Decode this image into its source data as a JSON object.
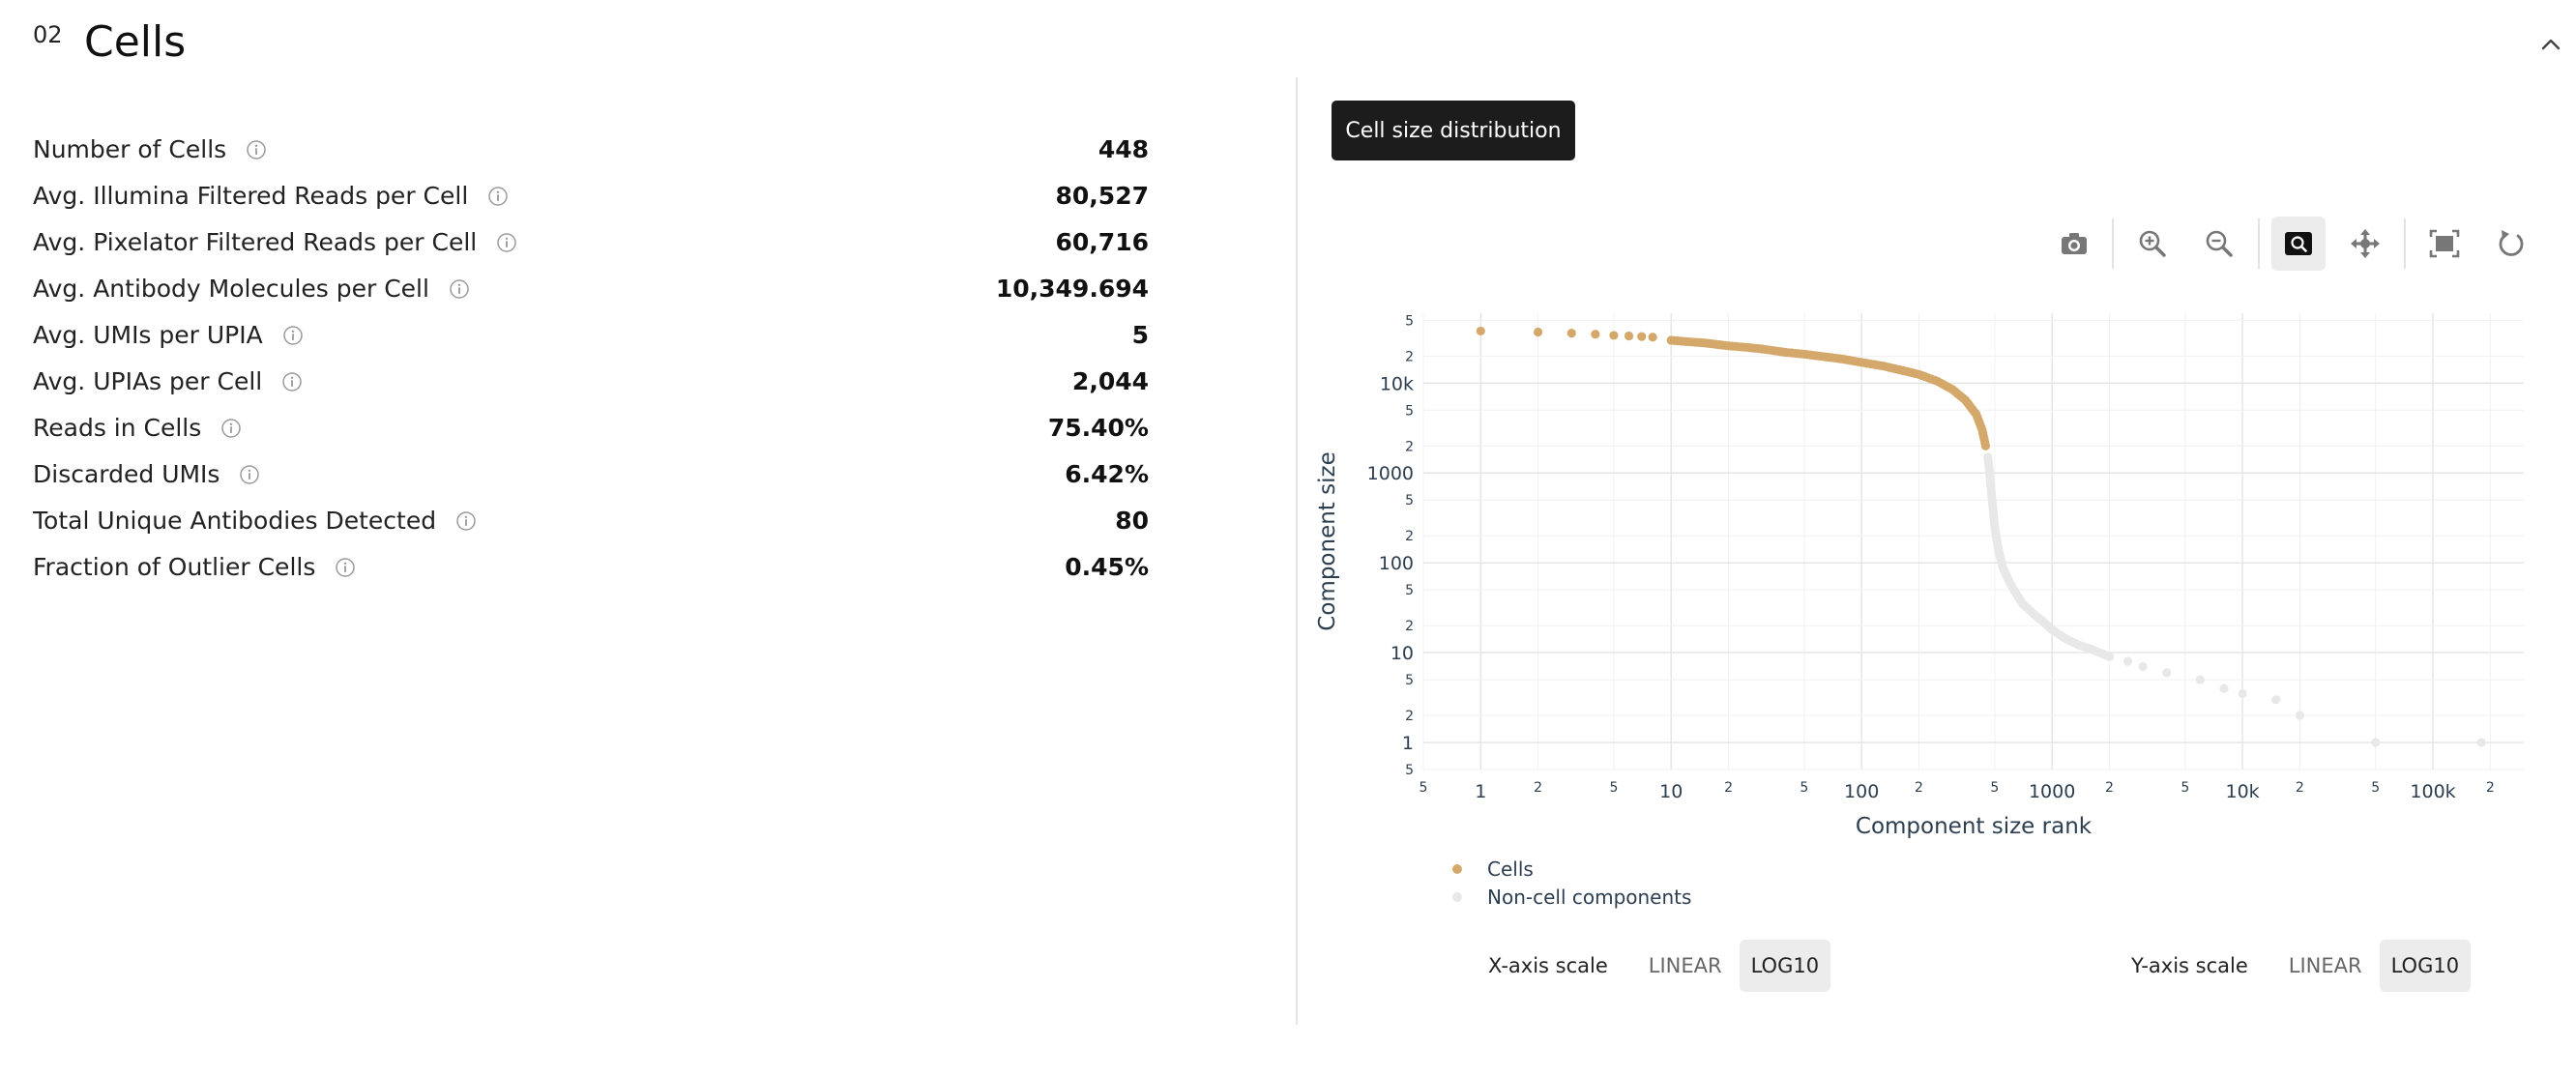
{
  "section": {
    "number": "02",
    "title": "Cells"
  },
  "metrics": [
    {
      "label": "Number of Cells",
      "value": "448"
    },
    {
      "label": "Avg. Illumina Filtered Reads per Cell",
      "value": "80,527"
    },
    {
      "label": "Avg. Pixelator Filtered Reads per Cell",
      "value": "60,716"
    },
    {
      "label": "Avg. Antibody Molecules per Cell",
      "value": "10,349.694"
    },
    {
      "label": "Avg. UMIs per UPIA",
      "value": "5"
    },
    {
      "label": "Avg. UPIAs per Cell",
      "value": "2,044"
    },
    {
      "label": "Reads in Cells",
      "value": "75.40%"
    },
    {
      "label": "Discarded UMIs",
      "value": "6.42%"
    },
    {
      "label": "Total Unique Antibodies Detected",
      "value": "80"
    },
    {
      "label": "Fraction of Outlier Cells",
      "value": "0.45%"
    }
  ],
  "plot_tab": {
    "label": "Cell size distribution"
  },
  "modebar": [
    "camera-icon",
    "zoom-in-icon",
    "zoom-out-icon",
    "zoom-box-icon",
    "pan-icon",
    "autoscale-icon",
    "reset-axes-icon"
  ],
  "axis_controls": {
    "x": {
      "label": "X-axis scale",
      "options": [
        "LINEAR",
        "LOG10"
      ],
      "selected": "LOG10"
    },
    "y": {
      "label": "Y-axis scale",
      "options": [
        "LINEAR",
        "LOG10"
      ],
      "selected": "LOG10"
    }
  },
  "colors": {
    "cells": "#d4a86a",
    "non_cell": "#e8e8e8",
    "tab_bg": "#1c1c1c"
  },
  "chart_data": {
    "type": "scatter",
    "xlabel": "Component size rank",
    "ylabel": "Component size",
    "x_scale": "log",
    "y_scale": "log",
    "xlim": [
      0.5,
      300000
    ],
    "ylim": [
      0.5,
      60000
    ],
    "grid": true,
    "legend_position": "below",
    "x_ticks": {
      "major": [
        {
          "v": 1,
          "t": "1"
        },
        {
          "v": 10,
          "t": "10"
        },
        {
          "v": 100,
          "t": "100"
        },
        {
          "v": 1000,
          "t": "1000"
        },
        {
          "v": 10000,
          "t": "10k"
        },
        {
          "v": 100000,
          "t": "100k"
        }
      ],
      "minor": [
        {
          "v": 0.5,
          "t": "5"
        },
        {
          "v": 2,
          "t": "2"
        },
        {
          "v": 5,
          "t": "5"
        },
        {
          "v": 20,
          "t": "2"
        },
        {
          "v": 50,
          "t": "5"
        },
        {
          "v": 200,
          "t": "2"
        },
        {
          "v": 500,
          "t": "5"
        },
        {
          "v": 2000,
          "t": "2"
        },
        {
          "v": 5000,
          "t": "5"
        },
        {
          "v": 20000,
          "t": "2"
        },
        {
          "v": 50000,
          "t": "5"
        },
        {
          "v": 200000,
          "t": "2"
        }
      ]
    },
    "y_ticks": {
      "major": [
        {
          "v": 1,
          "t": "1"
        },
        {
          "v": 10,
          "t": "10"
        },
        {
          "v": 100,
          "t": "100"
        },
        {
          "v": 1000,
          "t": "1000"
        },
        {
          "v": 10000,
          "t": "10k"
        }
      ],
      "minor": [
        {
          "v": 0.5,
          "t": "5"
        },
        {
          "v": 2,
          "t": "2"
        },
        {
          "v": 5,
          "t": "5"
        },
        {
          "v": 20,
          "t": "2"
        },
        {
          "v": 50,
          "t": "5"
        },
        {
          "v": 200,
          "t": "2"
        },
        {
          "v": 500,
          "t": "5"
        },
        {
          "v": 2000,
          "t": "2"
        },
        {
          "v": 5000,
          "t": "5"
        },
        {
          "v": 20000,
          "t": "2"
        },
        {
          "v": 50000,
          "t": "5"
        }
      ]
    },
    "series": [
      {
        "name": "Cells",
        "color": "#d4a86a",
        "points": [
          [
            1,
            38000
          ],
          [
            2,
            37000
          ],
          [
            3,
            36000
          ],
          [
            4,
            35000
          ],
          [
            5,
            34000
          ],
          [
            6,
            33500
          ],
          [
            7,
            33000
          ],
          [
            8,
            32500
          ],
          [
            10,
            30000
          ],
          [
            12,
            29000
          ],
          [
            15,
            28000
          ],
          [
            20,
            26000
          ],
          [
            25,
            25000
          ],
          [
            30,
            24000
          ],
          [
            40,
            22000
          ],
          [
            50,
            21000
          ],
          [
            60,
            20000
          ],
          [
            80,
            18500
          ],
          [
            100,
            17000
          ],
          [
            130,
            15500
          ],
          [
            160,
            14000
          ],
          [
            200,
            12500
          ],
          [
            250,
            10500
          ],
          [
            300,
            8500
          ],
          [
            350,
            6500
          ],
          [
            400,
            4500
          ],
          [
            430,
            3000
          ],
          [
            448,
            2000
          ]
        ]
      },
      {
        "name": "Non-cell components",
        "color": "#e8e8e8",
        "points": [
          [
            460,
            1500
          ],
          [
            470,
            1000
          ],
          [
            480,
            600
          ],
          [
            490,
            400
          ],
          [
            500,
            250
          ],
          [
            520,
            150
          ],
          [
            550,
            90
          ],
          [
            600,
            60
          ],
          [
            650,
            45
          ],
          [
            700,
            35
          ],
          [
            800,
            27
          ],
          [
            900,
            22
          ],
          [
            1000,
            18
          ],
          [
            1200,
            14
          ],
          [
            1400,
            12
          ],
          [
            1600,
            11
          ],
          [
            2000,
            9
          ],
          [
            2500,
            8
          ],
          [
            3000,
            7
          ],
          [
            4000,
            6
          ],
          [
            6000,
            5
          ],
          [
            8000,
            4
          ],
          [
            10000,
            3.5
          ],
          [
            15000,
            3
          ],
          [
            20000,
            2
          ],
          [
            50000,
            1
          ],
          [
            180000,
            1
          ]
        ]
      }
    ]
  }
}
